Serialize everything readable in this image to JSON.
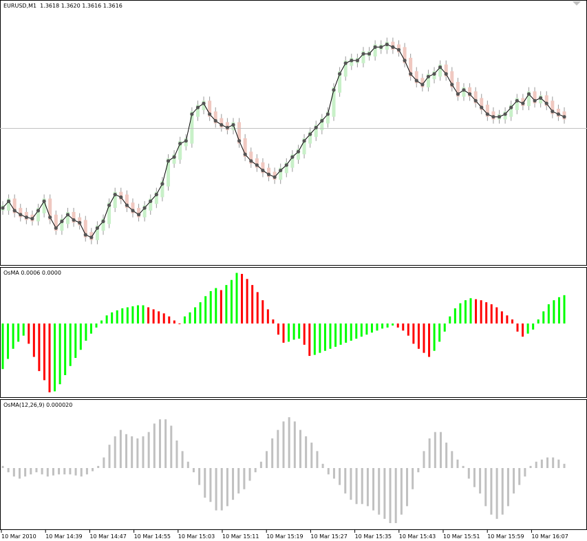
{
  "main": {
    "label": "EURUSD,M1  1.3618 1.3620 1.3616 1.3616",
    "symbol": "EURUSD,M1"
  },
  "osma1": {
    "label": "OsMA 0.0006 0.0000",
    "up_color": "#00ff00",
    "down_color": "#ff0000"
  },
  "osma2": {
    "label": "OsMA(12,26,9) 0.000020",
    "bar_color": "#c0c0c0"
  },
  "colors": {
    "bull_candle": "#c8f0c8",
    "bear_candle": "#f0c8c0",
    "line": "#000000",
    "dot": "#555555",
    "price_line": "#c0c0c0"
  },
  "x_axis": {
    "labels": [
      "10 Mar 2010",
      "10 Mar 14:39",
      "10 Mar 14:47",
      "10 Mar 14:55",
      "10 Mar 15:03",
      "10 Mar 15:11",
      "10 Mar 15:19",
      "10 Mar 15:27",
      "10 Mar 15:35",
      "10 Mar 15:43",
      "10 Mar 15:51",
      "10 Mar 15:59",
      "10 Mar 16:07"
    ]
  },
  "chart_data": [
    {
      "type": "line",
      "series": [
        {
          "values": [
            80,
            85,
            78,
            75,
            73,
            72,
            78,
            85,
            73,
            65,
            70,
            75,
            71,
            69,
            60,
            58,
            65,
            70,
            82,
            90,
            88,
            82,
            78,
            75,
            80,
            85,
            90,
            98,
            115,
            118,
            128,
            130,
            150,
            155,
            158,
            150,
            145,
            142,
            140,
            142,
            130,
            120,
            115,
            112,
            108,
            105,
            103,
            108,
            112,
            118,
            122,
            130,
            135,
            140,
            145,
            150,
            168,
            180,
            188,
            190,
            190,
            195,
            195,
            200,
            200,
            202,
            200,
            198,
            190,
            180,
            175,
            172,
            178,
            180,
            185,
            180,
            172,
            165,
            168,
            165,
            160,
            155,
            150,
            148,
            148,
            150,
            155,
            160,
            158,
            165,
            160,
            162,
            158,
            152,
            150,
            148
          ]
        }
      ]
    },
    {
      "type": "bar",
      "values": [
        -0.00045,
        -0.00035,
        -0.00025,
        -0.00018,
        -0.00012,
        -0.0002,
        -0.00033,
        -0.00047,
        -0.00056,
        -0.00068,
        -0.00067,
        -0.0006,
        -0.00051,
        -0.00042,
        -0.00034,
        -0.00026,
        -0.00017,
        -0.0001,
        -4e-05,
        3e-05,
        8e-05,
        0.00011,
        0.00013,
        0.00015,
        0.00016,
        0.00017,
        0.00018,
        0.00018,
        0.00016,
        0.00014,
        0.00012,
        0.0001,
        7e-05,
        3e-05,
        0.0,
        7e-05,
        0.00011,
        0.00016,
        0.00021,
        0.00027,
        0.00032,
        0.00035,
        0.00033,
        0.00038,
        0.00043,
        0.0005,
        0.00049,
        0.00044,
        0.00038,
        0.00031,
        0.00023,
        0.00014,
        4e-05,
        -0.00011,
        -0.00019,
        -0.00018,
        -0.00016,
        -0.00015,
        -0.00021,
        -0.00032,
        -0.00031,
        -0.00029,
        -0.00027,
        -0.00025,
        -0.00023,
        -0.00021,
        -0.00019,
        -0.00017,
        -0.00015,
        -0.00013,
        -0.00011,
        -9e-05,
        -7e-05,
        -5e-05,
        -4e-05,
        -2e-05,
        -4e-05,
        -7e-05,
        -0.00012,
        -0.0002,
        -0.00025,
        -0.00029,
        -0.00033,
        -0.00027,
        -0.00018,
        -8e-05,
        7e-05,
        0.00015,
        0.0002,
        0.00023,
        0.00025,
        0.00024,
        0.00023,
        0.00021,
        0.00019,
        0.00016,
        0.00012,
        8e-05,
        4e-05,
        -8e-05,
        -0.00013,
        -0.0001,
        -6e-05,
        4e-05,
        0.00012,
        0.00019,
        0.00023,
        0.00026,
        0.00028
      ]
    },
    {
      "type": "bar",
      "values": [
        2e-06,
        -4e-06,
        -8e-06,
        -1e-05,
        -8e-06,
        -6e-06,
        -4e-06,
        -6e-06,
        -8e-06,
        -7e-06,
        -6e-06,
        -6e-06,
        -6e-06,
        -7e-06,
        -8e-06,
        -6e-06,
        -3e-06,
        2e-06,
        1e-05,
        2.2e-05,
        3e-05,
        3.6e-05,
        3.2e-05,
        3e-05,
        2.8e-05,
        3e-05,
        3.4e-05,
        4.2e-05,
        4.6e-05,
        4.6e-05,
        4e-05,
        2.6e-05,
        1.6e-05,
        6e-06,
        -4e-06,
        -1.6e-05,
        -2.8e-05,
        -3.2e-05,
        -4e-05,
        -4e-05,
        -3.6e-05,
        -3e-05,
        -2.4e-05,
        -2e-05,
        -1.2e-05,
        -4e-06,
        6e-06,
        1.6e-05,
        2.8e-05,
        3.6e-05,
        4.4e-05,
        4.8e-05,
        4.4e-05,
        3.6e-05,
        3e-05,
        2.4e-05,
        1.6e-05,
        4e-06,
        -6e-06,
        -1e-05,
        -1.6e-05,
        -2.4e-05,
        -3e-05,
        -3.4e-05,
        -3.4e-05,
        -3.6e-05,
        -4e-05,
        -4.4e-05,
        -4.8e-05,
        -5.2e-05,
        -5.2e-05,
        -4.4e-05,
        -3.6e-05,
        -2e-05,
        -4e-06,
        1.6e-05,
        2.8e-05,
        3.4e-05,
        3.4e-05,
        2.4e-05,
        1.6e-05,
        8e-06,
        2e-06,
        -1e-05,
        -1.8e-05,
        -2.4e-05,
        -3.6e-05,
        -4.4e-05,
        -4.8e-05,
        -4.4e-05,
        -3.6e-05,
        -2.4e-05,
        -1.6e-05,
        -8e-06,
        2e-06,
        6e-06,
        8e-06,
        1e-05,
        1e-05,
        8e-06,
        4e-06
      ]
    }
  ]
}
